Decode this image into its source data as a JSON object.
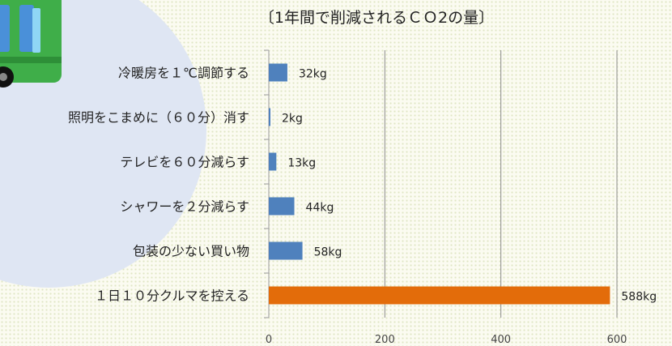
{
  "chart_data": {
    "type": "bar",
    "orientation": "horizontal",
    "title": "〔1年間で削減されるＣＯ2の量〕",
    "categories": [
      "冷暖房を１℃調節する",
      "照明をこまめに（６０分）消す",
      "テレビを６０分減らす",
      "シャワーを２分減らす",
      "包装の少ない買い物",
      "１日１０分クルマを控える"
    ],
    "values": [
      32,
      2,
      13,
      44,
      58,
      588
    ],
    "value_labels": [
      "32kg",
      "2kg",
      "13kg",
      "44kg",
      "58kg",
      "588kg"
    ],
    "xlim": [
      0,
      600
    ],
    "xticks": [
      "0",
      "200",
      "400",
      "600"
    ],
    "grid": true,
    "bar_colors": [
      "#4f81bd",
      "#4f81bd",
      "#4f81bd",
      "#4f81bd",
      "#4f81bd",
      "#e36c0a"
    ]
  },
  "illustration": {
    "name": "green-bus-illustration",
    "colors": {
      "body": "#3fae49",
      "window": "#4a90d9",
      "wheel": "#111111"
    },
    "backdrop_color": "#dfe6f3"
  }
}
